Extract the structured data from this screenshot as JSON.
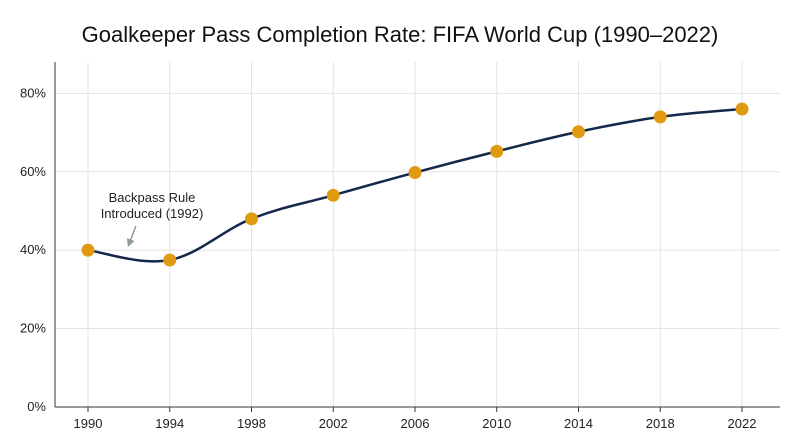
{
  "chart_data": {
    "type": "line",
    "title": "Goalkeeper Pass Completion Rate: FIFA World Cup (1990–2022)",
    "xlabel": "",
    "ylabel": "",
    "x": [
      "1990",
      "1994",
      "1998",
      "2002",
      "2006",
      "2010",
      "2014",
      "2018",
      "2022"
    ],
    "series": [
      {
        "values": [
          40,
          37.5,
          48,
          54,
          59.8,
          65.2,
          70.2,
          74,
          76
        ]
      }
    ],
    "ylim": [
      0,
      88
    ],
    "yticks": [
      0,
      20,
      40,
      60,
      80
    ],
    "ytick_labels": [
      "0%",
      "20%",
      "40%",
      "60%",
      "80%"
    ],
    "grid": true,
    "legend": "none",
    "annotation": {
      "lines": [
        "Backpass Rule",
        "Introduced (1992)"
      ],
      "x": 1992,
      "y": 40
    },
    "colors": {
      "line": "#14284b",
      "marker": "#e09a12",
      "annotation_arrow": "#8f9a92"
    }
  }
}
